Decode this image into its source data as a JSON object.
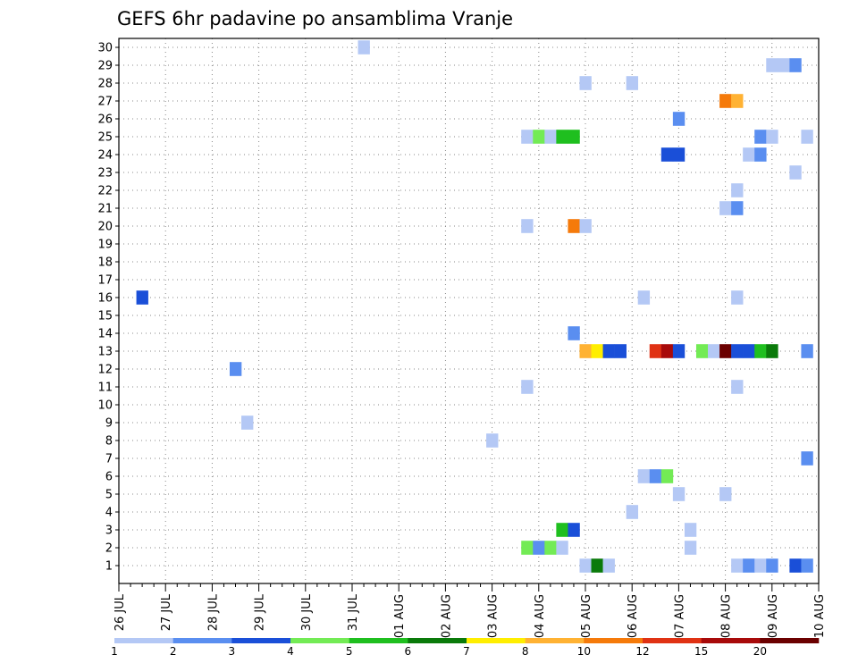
{
  "chart_data": {
    "type": "heatmap",
    "title": "GEFS 6hr padavine po ansamblima Vranje",
    "xlabel": "",
    "ylabel": "",
    "x_ticks": [
      "26 JUL",
      "27 JUL",
      "28 JUL",
      "29 JUL",
      "30 JUL",
      "31 JUL",
      "01 AUG",
      "02 AUG",
      "03 AUG",
      "04 AUG",
      "05 AUG",
      "06 AUG",
      "07 AUG",
      "08 AUG",
      "09 AUG",
      "10 AUG"
    ],
    "y_ticks": [
      1,
      2,
      3,
      4,
      5,
      6,
      7,
      8,
      9,
      10,
      11,
      12,
      13,
      14,
      15,
      16,
      17,
      18,
      19,
      20,
      21,
      22,
      23,
      24,
      25,
      26,
      27,
      28,
      29,
      30
    ],
    "x_step_hours": 6,
    "grid": true,
    "legend_position": "bottom",
    "legend": {
      "labels": [
        "1",
        "2",
        "3",
        "4",
        "5",
        "6",
        "7",
        "8",
        "10",
        "12",
        "15",
        "20"
      ],
      "colors": [
        "#b4c8f5",
        "#5a8ef0",
        "#1a4fd8",
        "#73eb55",
        "#1fbf1f",
        "#0a7a0a",
        "#ffee00",
        "#ffb233",
        "#f57a0a",
        "#e03214",
        "#a80a0a",
        "#6b0000"
      ]
    },
    "cells": [
      {
        "member": 30,
        "step": 21,
        "cls": 0
      },
      {
        "member": 29,
        "step": 56,
        "cls": 0
      },
      {
        "member": 29,
        "step": 57,
        "cls": 0
      },
      {
        "member": 29,
        "step": 58,
        "cls": 1
      },
      {
        "member": 28,
        "step": 40,
        "cls": 0
      },
      {
        "member": 28,
        "step": 44,
        "cls": 0
      },
      {
        "member": 27,
        "step": 52,
        "cls": 8
      },
      {
        "member": 27,
        "step": 53,
        "cls": 7
      },
      {
        "member": 26,
        "step": 48,
        "cls": 1
      },
      {
        "member": 25,
        "step": 35,
        "cls": 0
      },
      {
        "member": 25,
        "step": 36,
        "cls": 3
      },
      {
        "member": 25,
        "step": 37,
        "cls": 0
      },
      {
        "member": 25,
        "step": 38,
        "cls": 4
      },
      {
        "member": 25,
        "step": 39,
        "cls": 4
      },
      {
        "member": 25,
        "step": 55,
        "cls": 1
      },
      {
        "member": 25,
        "step": 56,
        "cls": 0
      },
      {
        "member": 25,
        "step": 59,
        "cls": 0
      },
      {
        "member": 24,
        "step": 47,
        "cls": 2
      },
      {
        "member": 24,
        "step": 48,
        "cls": 2
      },
      {
        "member": 24,
        "step": 54,
        "cls": 0
      },
      {
        "member": 24,
        "step": 55,
        "cls": 1
      },
      {
        "member": 23,
        "step": 58,
        "cls": 0
      },
      {
        "member": 22,
        "step": 53,
        "cls": 0
      },
      {
        "member": 21,
        "step": 52,
        "cls": 0
      },
      {
        "member": 21,
        "step": 53,
        "cls": 1
      },
      {
        "member": 20,
        "step": 35,
        "cls": 0
      },
      {
        "member": 20,
        "step": 39,
        "cls": 8
      },
      {
        "member": 20,
        "step": 40,
        "cls": 0
      },
      {
        "member": 16,
        "step": 2,
        "cls": 2
      },
      {
        "member": 16,
        "step": 45,
        "cls": 0
      },
      {
        "member": 16,
        "step": 53,
        "cls": 0
      },
      {
        "member": 14,
        "step": 39,
        "cls": 1
      },
      {
        "member": 13,
        "step": 40,
        "cls": 7
      },
      {
        "member": 13,
        "step": 41,
        "cls": 6
      },
      {
        "member": 13,
        "step": 42,
        "cls": 2
      },
      {
        "member": 13,
        "step": 43,
        "cls": 2
      },
      {
        "member": 13,
        "step": 46,
        "cls": 9
      },
      {
        "member": 13,
        "step": 47,
        "cls": 10
      },
      {
        "member": 13,
        "step": 48,
        "cls": 2
      },
      {
        "member": 13,
        "step": 50,
        "cls": 3
      },
      {
        "member": 13,
        "step": 51,
        "cls": 0
      },
      {
        "member": 13,
        "step": 52,
        "cls": 11
      },
      {
        "member": 13,
        "step": 53,
        "cls": 2
      },
      {
        "member": 13,
        "step": 54,
        "cls": 2
      },
      {
        "member": 13,
        "step": 55,
        "cls": 4
      },
      {
        "member": 13,
        "step": 56,
        "cls": 5
      },
      {
        "member": 13,
        "step": 59,
        "cls": 1
      },
      {
        "member": 12,
        "step": 10,
        "cls": 1
      },
      {
        "member": 11,
        "step": 35,
        "cls": 0
      },
      {
        "member": 11,
        "step": 53,
        "cls": 0
      },
      {
        "member": 9,
        "step": 11,
        "cls": 0
      },
      {
        "member": 8,
        "step": 32,
        "cls": 0
      },
      {
        "member": 7,
        "step": 59,
        "cls": 1
      },
      {
        "member": 6,
        "step": 45,
        "cls": 0
      },
      {
        "member": 6,
        "step": 46,
        "cls": 1
      },
      {
        "member": 6,
        "step": 47,
        "cls": 3
      },
      {
        "member": 5,
        "step": 48,
        "cls": 0
      },
      {
        "member": 5,
        "step": 52,
        "cls": 0
      },
      {
        "member": 4,
        "step": 44,
        "cls": 0
      },
      {
        "member": 3,
        "step": 38,
        "cls": 4
      },
      {
        "member": 3,
        "step": 39,
        "cls": 2
      },
      {
        "member": 3,
        "step": 49,
        "cls": 0
      },
      {
        "member": 2,
        "step": 35,
        "cls": 3
      },
      {
        "member": 2,
        "step": 36,
        "cls": 1
      },
      {
        "member": 2,
        "step": 37,
        "cls": 3
      },
      {
        "member": 2,
        "step": 38,
        "cls": 0
      },
      {
        "member": 2,
        "step": 49,
        "cls": 0
      },
      {
        "member": 1,
        "step": 40,
        "cls": 0
      },
      {
        "member": 1,
        "step": 41,
        "cls": 5
      },
      {
        "member": 1,
        "step": 42,
        "cls": 0
      },
      {
        "member": 1,
        "step": 53,
        "cls": 0
      },
      {
        "member": 1,
        "step": 54,
        "cls": 1
      },
      {
        "member": 1,
        "step": 55,
        "cls": 0
      },
      {
        "member": 1,
        "step": 56,
        "cls": 1
      },
      {
        "member": 1,
        "step": 58,
        "cls": 2
      },
      {
        "member": 1,
        "step": 59,
        "cls": 1
      }
    ]
  }
}
